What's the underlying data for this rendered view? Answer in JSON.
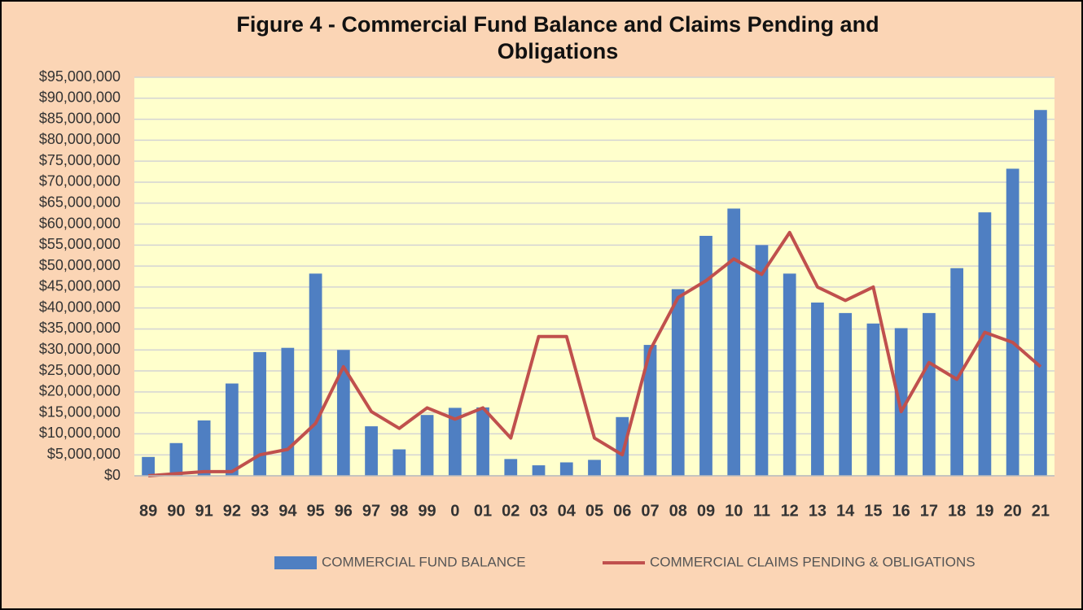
{
  "chart_data": {
    "type": "bar_line",
    "title": "Figure 4 -  Commercial Fund Balance and Claims Pending and Obligations",
    "categories": [
      "89",
      "90",
      "91",
      "92",
      "93",
      "94",
      "95",
      "96",
      "97",
      "98",
      "99",
      "0",
      "01",
      "02",
      "03",
      "04",
      "05",
      "06",
      "07",
      "08",
      "09",
      "10",
      "11",
      "12",
      "13",
      "14",
      "15",
      "16",
      "17",
      "18",
      "19",
      "20",
      "21"
    ],
    "series": [
      {
        "name": "COMMERCIAL FUND BALANCE",
        "type": "bar",
        "color": "#4f7fc2",
        "values": [
          4500000,
          7800000,
          13200000,
          22000000,
          29500000,
          30500000,
          48200000,
          30000000,
          11800000,
          6300000,
          14500000,
          16200000,
          16300000,
          4000000,
          2500000,
          3200000,
          3800000,
          14000000,
          31200000,
          44500000,
          57200000,
          63700000,
          55000000,
          48200000,
          41300000,
          38800000,
          36300000,
          35200000,
          38800000,
          49500000,
          62800000,
          73200000,
          87200000
        ]
      },
      {
        "name": "COMMERCIAL CLAIMS PENDING & OBLIGATIONS",
        "type": "line",
        "color": "#c0504d",
        "values": [
          0,
          500000,
          1000000,
          1000000,
          5000000,
          6300000,
          12500000,
          26000000,
          15300000,
          11300000,
          16200000,
          13500000,
          16200000,
          9000000,
          33200000,
          33200000,
          9000000,
          5000000,
          30000000,
          42500000,
          46500000,
          51700000,
          48000000,
          58000000,
          45000000,
          41800000,
          45000000,
          15300000,
          27000000,
          23000000,
          34200000,
          31800000,
          26000000
        ]
      }
    ],
    "ylim": [
      0,
      95000000
    ],
    "yticks": [
      {
        "value": 0,
        "label": "$0"
      },
      {
        "value": 5000000,
        "label": "$5,000,000"
      },
      {
        "value": 10000000,
        "label": "$10,000,000"
      },
      {
        "value": 15000000,
        "label": "$15,000,000"
      },
      {
        "value": 20000000,
        "label": "$20,000,000"
      },
      {
        "value": 25000000,
        "label": "$25,000,000"
      },
      {
        "value": 30000000,
        "label": "$30,000,000"
      },
      {
        "value": 35000000,
        "label": "$35,000,000"
      },
      {
        "value": 40000000,
        "label": "$40,000,000"
      },
      {
        "value": 45000000,
        "label": "$45,000,000"
      },
      {
        "value": 50000000,
        "label": "$50,000,000"
      },
      {
        "value": 55000000,
        "label": "$55,000,000"
      },
      {
        "value": 60000000,
        "label": "$60,000,000"
      },
      {
        "value": 65000000,
        "label": "$65,000,000"
      },
      {
        "value": 70000000,
        "label": "$70,000,000"
      },
      {
        "value": 75000000,
        "label": "$75,000,000"
      },
      {
        "value": 80000000,
        "label": "$80,000,000"
      },
      {
        "value": 85000000,
        "label": "$85,000,000"
      },
      {
        "value": 90000000,
        "label": "$90,000,000"
      },
      {
        "value": 95000000,
        "label": "$95,000,000"
      }
    ],
    "grid": true,
    "legend": "bottom"
  }
}
